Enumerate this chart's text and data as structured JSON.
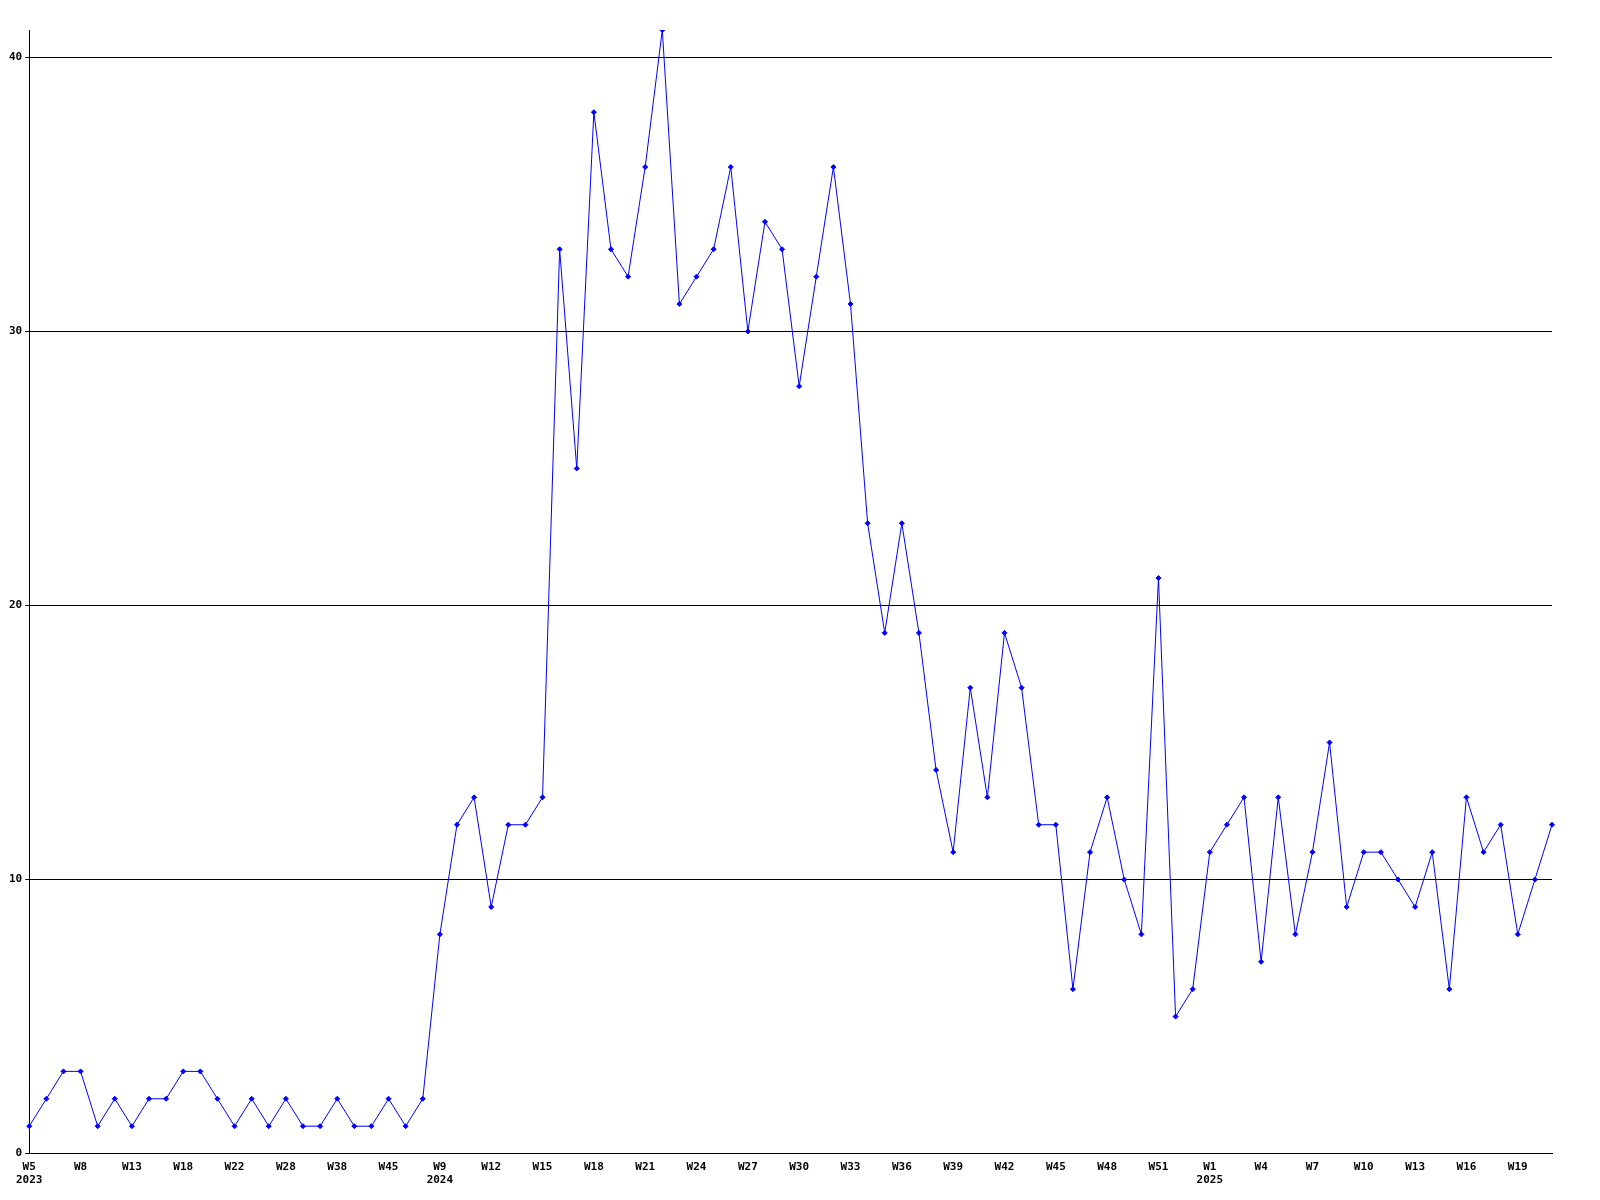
{
  "chart_data": {
    "type": "line",
    "categories": [
      "W5\n2023",
      null,
      null,
      "W8",
      null,
      null,
      "W13",
      null,
      null,
      "W18",
      null,
      null,
      "W22",
      null,
      null,
      "W28",
      null,
      null,
      "W38",
      null,
      null,
      "W45",
      null,
      null,
      "W9\n2024",
      null,
      null,
      "W12",
      null,
      null,
      "W15",
      null,
      null,
      "W18",
      null,
      null,
      "W21",
      null,
      null,
      "W24",
      null,
      null,
      "W27",
      null,
      null,
      "W30",
      null,
      null,
      "W33",
      null,
      null,
      "W36",
      null,
      null,
      "W39",
      null,
      null,
      "W42",
      null,
      null,
      "W45",
      null,
      null,
      "W48",
      null,
      null,
      "W51",
      null,
      null,
      "W1\n2025",
      null,
      null,
      "W4",
      null,
      null,
      "W7",
      null,
      null,
      "W10",
      null,
      null,
      "W13",
      null,
      null,
      "W16",
      null,
      null,
      "W19",
      null,
      null
    ],
    "series": [
      {
        "color": "#0000ff",
        "values": [
          1,
          2,
          3,
          3,
          1,
          2,
          1,
          2,
          2,
          3,
          3,
          2,
          1,
          2,
          1,
          2,
          1,
          1,
          2,
          1,
          1,
          2,
          1,
          2,
          8,
          12,
          13,
          9,
          12,
          12,
          13,
          33,
          25,
          38,
          33,
          32,
          36,
          41,
          31,
          32,
          33,
          36,
          30,
          34,
          33,
          28,
          32,
          36,
          31,
          23,
          19,
          23,
          19,
          14,
          11,
          17,
          13,
          19,
          17,
          12,
          12,
          6,
          11,
          13,
          10,
          8,
          21,
          5,
          6,
          11,
          12,
          13,
          7,
          13,
          8,
          11,
          15,
          9,
          11,
          11,
          10,
          9,
          11,
          6,
          13,
          11,
          12,
          8,
          10,
          12
        ]
      }
    ],
    "ylim": [
      0,
      41
    ],
    "yticks": [
      0,
      10,
      20,
      30,
      40
    ],
    "grid": "y",
    "legend": false,
    "marker": "diamond",
    "line_style": "solid"
  }
}
